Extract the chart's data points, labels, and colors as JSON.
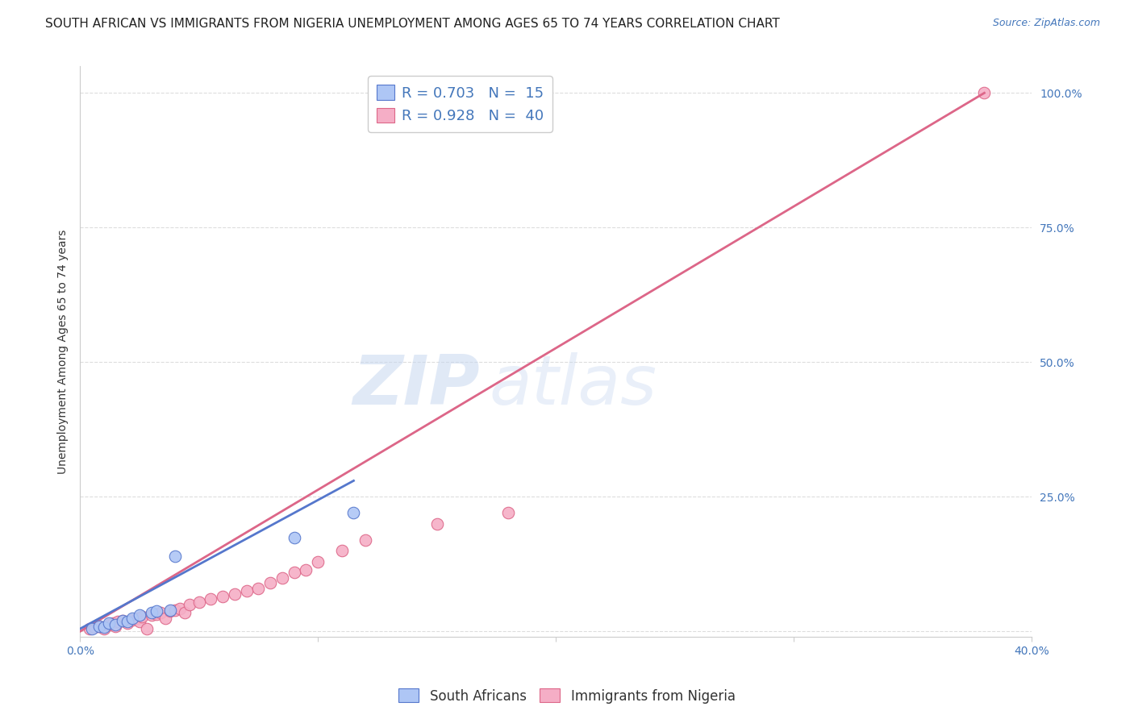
{
  "title": "SOUTH AFRICAN VS IMMIGRANTS FROM NIGERIA UNEMPLOYMENT AMONG AGES 65 TO 74 YEARS CORRELATION CHART",
  "source": "Source: ZipAtlas.com",
  "ylabel": "Unemployment Among Ages 65 to 74 years",
  "x_ticks": [
    0.0,
    0.1,
    0.2,
    0.3,
    0.4
  ],
  "x_tick_labels": [
    "0.0%",
    "",
    "",
    "",
    "40.0%"
  ],
  "y_ticks_right": [
    0.0,
    0.25,
    0.5,
    0.75,
    1.0
  ],
  "y_tick_labels_right": [
    "",
    "25.0%",
    "50.0%",
    "75.0%",
    "100.0%"
  ],
  "xlim": [
    0.0,
    0.4
  ],
  "ylim": [
    -0.01,
    1.05
  ],
  "legend1_label": "R = 0.703   N =  15",
  "legend2_label": "R = 0.928   N =  40",
  "legend1_color": "#aec6f5",
  "legend2_color": "#f5aec6",
  "scatter_blue_x": [
    0.005,
    0.008,
    0.01,
    0.012,
    0.015,
    0.018,
    0.02,
    0.022,
    0.025,
    0.03,
    0.032,
    0.038,
    0.04,
    0.09,
    0.115
  ],
  "scatter_blue_y": [
    0.005,
    0.01,
    0.008,
    0.015,
    0.012,
    0.02,
    0.018,
    0.025,
    0.03,
    0.035,
    0.038,
    0.04,
    0.14,
    0.175,
    0.22
  ],
  "scatter_pink_x": [
    0.004,
    0.006,
    0.008,
    0.01,
    0.012,
    0.014,
    0.015,
    0.016,
    0.018,
    0.02,
    0.022,
    0.024,
    0.025,
    0.026,
    0.028,
    0.03,
    0.032,
    0.034,
    0.036,
    0.038,
    0.04,
    0.042,
    0.044,
    0.046,
    0.05,
    0.055,
    0.06,
    0.065,
    0.07,
    0.075,
    0.08,
    0.085,
    0.09,
    0.095,
    0.1,
    0.11,
    0.12,
    0.15,
    0.18,
    0.38
  ],
  "scatter_pink_y": [
    0.005,
    0.008,
    0.01,
    0.005,
    0.012,
    0.015,
    0.01,
    0.018,
    0.02,
    0.015,
    0.022,
    0.025,
    0.018,
    0.028,
    0.005,
    0.03,
    0.032,
    0.035,
    0.025,
    0.038,
    0.04,
    0.042,
    0.035,
    0.05,
    0.055,
    0.06,
    0.065,
    0.07,
    0.075,
    0.08,
    0.09,
    0.1,
    0.11,
    0.115,
    0.13,
    0.15,
    0.17,
    0.2,
    0.22,
    1.0
  ],
  "blue_line_x": [
    0.0,
    0.115
  ],
  "blue_line_y": [
    0.005,
    0.28
  ],
  "pink_line_x": [
    0.0,
    0.38
  ],
  "pink_line_y": [
    0.0,
    1.0
  ],
  "dashed_line_x": [
    0.0,
    0.38
  ],
  "dashed_line_y": [
    0.0,
    1.0
  ],
  "watermark_zip": "ZIP",
  "watermark_atlas": "atlas",
  "background_color": "#ffffff",
  "grid_color": "#dddddd",
  "scatter_blue_color": "#aec6f5",
  "scatter_pink_color": "#f5aec6",
  "blue_line_color": "#5577cc",
  "pink_line_color": "#dd6688",
  "dashed_line_color": "#99aabb",
  "title_fontsize": 11,
  "axis_label_fontsize": 10,
  "tick_fontsize": 10,
  "scatter_size": 110,
  "legend_fontsize": 13,
  "source_fontsize": 9,
  "bottom_legend_labels": [
    "South Africans",
    "Immigrants from Nigeria"
  ],
  "bottom_legend_colors": [
    "#aec6f5",
    "#f5aec6"
  ],
  "bottom_legend_edge_colors": [
    "#5577cc",
    "#dd6688"
  ]
}
